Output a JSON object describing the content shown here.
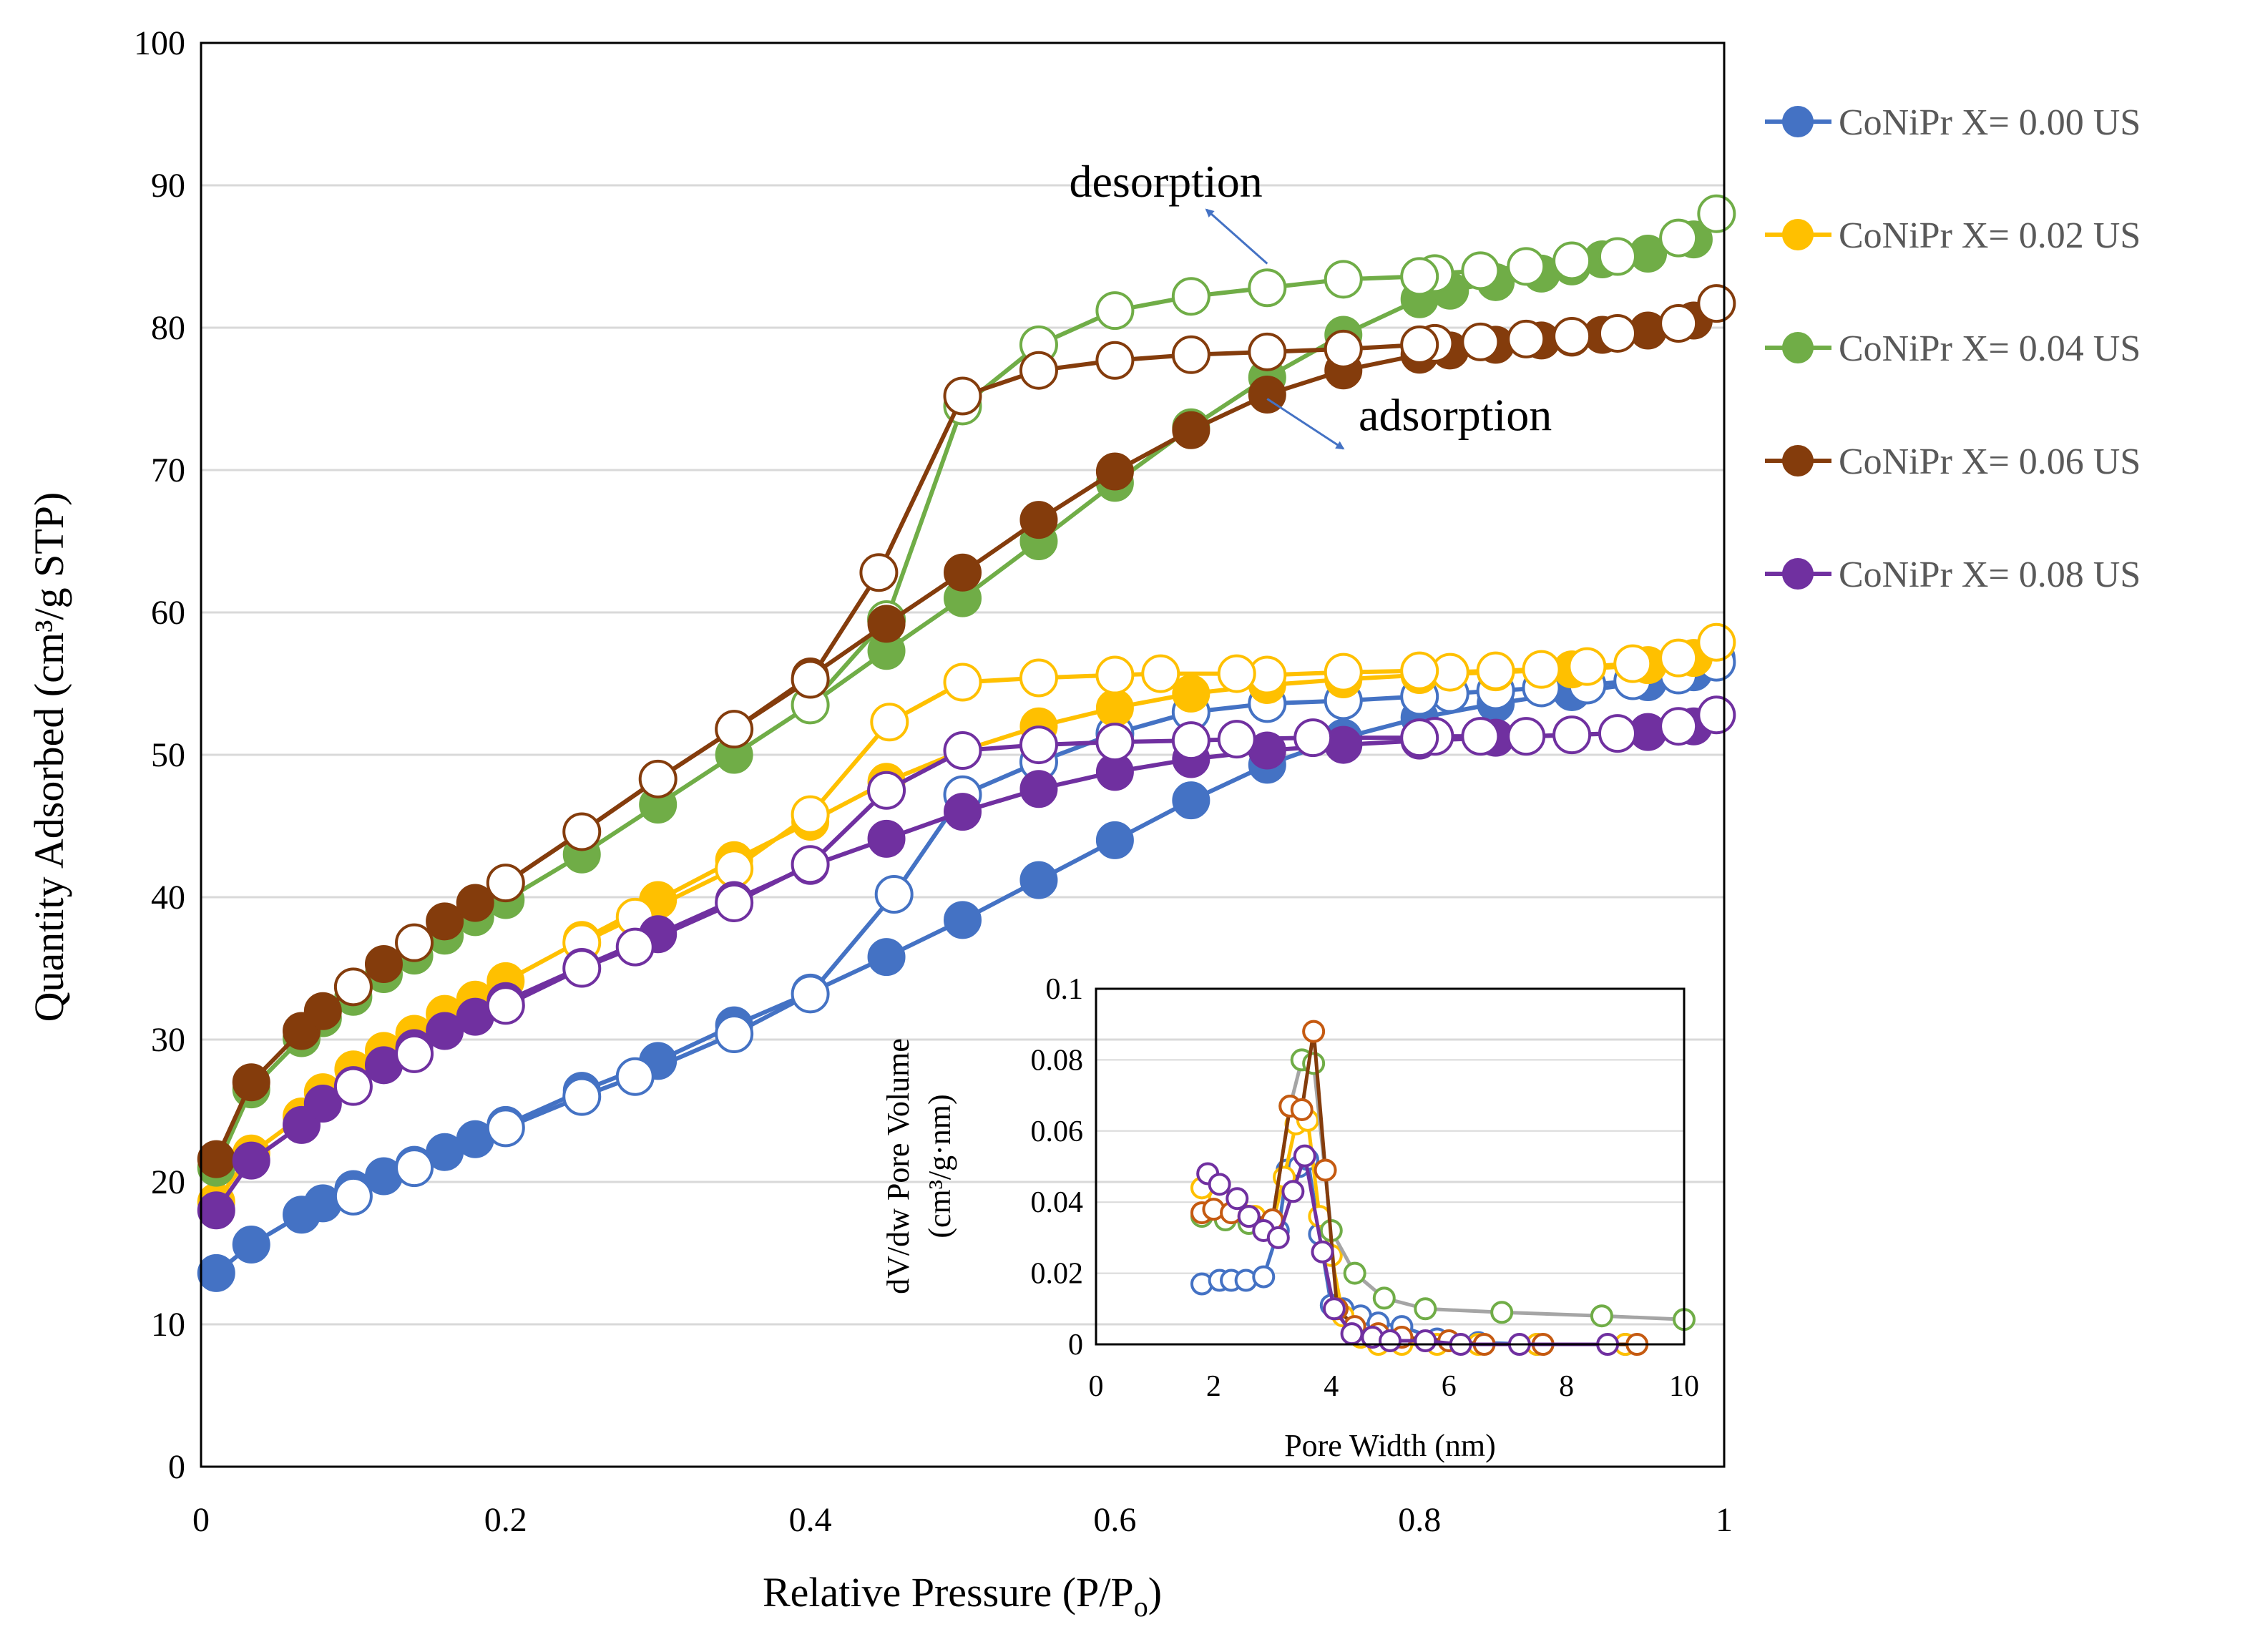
{
  "chart_data": [
    {
      "type": "line",
      "title": "",
      "xlabel": "Relative Pressure (P/P",
      "xlabel_sub": "o",
      "xlabel_end": ")",
      "ylabel": "Quantity Adsorbed (cm³/g STP)",
      "xlim": [
        0,
        1
      ],
      "ylim": [
        0,
        100
      ],
      "xticks": [
        0,
        0.2,
        0.4,
        0.6,
        0.8,
        1
      ],
      "xtick_labels": [
        "0",
        "0.2",
        "0.4",
        "0.6",
        "0.8",
        "1"
      ],
      "yticks": [
        0,
        10,
        20,
        30,
        40,
        50,
        60,
        70,
        80,
        90,
        100
      ],
      "ytick_labels": [
        "0",
        "10",
        "20",
        "30",
        "40",
        "50",
        "60",
        "70",
        "80",
        "90",
        "100"
      ],
      "grid": "horizontal",
      "legend_position": "right",
      "annotations": [
        {
          "text": "desorption",
          "x": 0.57,
          "y": 89.2,
          "arrow_from": [
            0.7,
            84.5
          ],
          "arrow_to": [
            0.66,
            88.3
          ]
        },
        {
          "text": "adsorption",
          "x": 0.76,
          "y": 72.8,
          "arrow_from": [
            0.7,
            75.0
          ],
          "arrow_to": [
            0.75,
            71.5
          ]
        }
      ],
      "series": [
        {
          "name": "CoNiPr X= 0.00 US",
          "color": "#4472C4",
          "adsorption": {
            "x": [
              0.01,
              0.033,
              0.066,
              0.08,
              0.1,
              0.12,
              0.14,
              0.16,
              0.18,
              0.2,
              0.25,
              0.3,
              0.35,
              0.4,
              0.45,
              0.5,
              0.55,
              0.6,
              0.65,
              0.7,
              0.75,
              0.8,
              0.85,
              0.9,
              0.95,
              0.98,
              0.995
            ],
            "y": [
              13.6,
              15.6,
              17.7,
              18.5,
              19.5,
              20.4,
              21.2,
              22.1,
              23.0,
              24.0,
              26.4,
              28.5,
              31.0,
              33.3,
              35.8,
              38.4,
              41.2,
              44.0,
              46.8,
              49.3,
              51.2,
              52.6,
              53.6,
              54.4,
              55.1,
              55.8,
              56.8
            ]
          },
          "desorption": {
            "x": [
              0.995,
              0.97,
              0.94,
              0.91,
              0.88,
              0.85,
              0.82,
              0.8,
              0.75,
              0.7,
              0.65,
              0.6,
              0.55,
              0.5,
              0.455,
              0.4,
              0.35,
              0.285,
              0.25,
              0.2,
              0.14,
              0.1
            ],
            "y": [
              56.5,
              55.6,
              55.2,
              54.9,
              54.7,
              54.5,
              54.3,
              54.1,
              53.8,
              53.6,
              53.0,
              51.5,
              49.5,
              47.2,
              40.2,
              33.2,
              30.4,
              27.4,
              26.0,
              23.8,
              21.0,
              19.0
            ]
          }
        },
        {
          "name": "CoNiPr X= 0.02 US",
          "color": "#FFC000",
          "adsorption": {
            "x": [
              0.01,
              0.033,
              0.066,
              0.08,
              0.1,
              0.12,
              0.14,
              0.16,
              0.18,
              0.2,
              0.25,
              0.3,
              0.35,
              0.4,
              0.45,
              0.5,
              0.55,
              0.6,
              0.65,
              0.7,
              0.75,
              0.8,
              0.85,
              0.9,
              0.95,
              0.98,
              0.995
            ],
            "y": [
              18.6,
              22.0,
              24.6,
              26.3,
              27.9,
              29.2,
              30.4,
              31.8,
              32.8,
              34.1,
              37.0,
              39.8,
              42.6,
              45.3,
              48.1,
              50.3,
              52.0,
              53.3,
              54.3,
              54.9,
              55.3,
              55.6,
              55.8,
              56.0,
              56.3,
              56.8,
              57.9
            ]
          },
          "desorption": {
            "x": [
              0.995,
              0.97,
              0.94,
              0.91,
              0.88,
              0.85,
              0.82,
              0.8,
              0.75,
              0.7,
              0.68,
              0.63,
              0.6,
              0.55,
              0.5,
              0.452,
              0.4,
              0.35,
              0.285,
              0.25
            ],
            "y": [
              57.9,
              56.8,
              56.4,
              56.2,
              56.0,
              55.9,
              55.8,
              55.9,
              55.8,
              55.6,
              55.7,
              55.7,
              55.6,
              55.4,
              55.1,
              52.3,
              45.8,
              42.0,
              38.6,
              36.8
            ]
          }
        },
        {
          "name": "CoNiPr X= 0.04 US",
          "color": "#70AD47",
          "adsorption": {
            "x": [
              0.01,
              0.033,
              0.066,
              0.08,
              0.1,
              0.12,
              0.14,
              0.16,
              0.18,
              0.2,
              0.25,
              0.3,
              0.35,
              0.4,
              0.45,
              0.5,
              0.55,
              0.6,
              0.65,
              0.7,
              0.75,
              0.8,
              0.82,
              0.85,
              0.88,
              0.9,
              0.92,
              0.95,
              0.98,
              0.995
            ],
            "y": [
              21.0,
              26.5,
              30.1,
              31.5,
              33.0,
              34.6,
              35.9,
              37.3,
              38.6,
              39.8,
              43.0,
              46.5,
              50.0,
              53.5,
              57.3,
              61.0,
              65.0,
              69.1,
              73.0,
              76.5,
              79.5,
              82.0,
              82.6,
              83.2,
              83.8,
              84.3,
              84.8,
              85.2,
              86.2,
              88.0
            ]
          },
          "desorption": {
            "x": [
              0.995,
              0.97,
              0.93,
              0.9,
              0.87,
              0.84,
              0.81,
              0.8,
              0.75,
              0.7,
              0.65,
              0.6,
              0.55,
              0.5,
              0.45,
              0.4
            ],
            "y": [
              88.0,
              86.3,
              85.0,
              84.7,
              84.3,
              84.0,
              83.8,
              83.6,
              83.4,
              82.8,
              82.2,
              81.2,
              78.8,
              74.5,
              59.5,
              53.5
            ]
          }
        },
        {
          "name": "CoNiPr X= 0.06 US",
          "color": "#843C0C",
          "adsorption": {
            "x": [
              0.01,
              0.033,
              0.066,
              0.08,
              0.1,
              0.12,
              0.14,
              0.16,
              0.18,
              0.2,
              0.25,
              0.3,
              0.35,
              0.4,
              0.45,
              0.5,
              0.55,
              0.6,
              0.65,
              0.7,
              0.75,
              0.8,
              0.82,
              0.85,
              0.88,
              0.9,
              0.92,
              0.95,
              0.98,
              0.995
            ],
            "y": [
              21.6,
              27.0,
              30.6,
              32.0,
              33.7,
              35.3,
              36.8,
              38.3,
              39.6,
              41.0,
              44.6,
              48.3,
              51.8,
              55.5,
              59.2,
              62.8,
              66.5,
              69.9,
              72.8,
              75.3,
              77.0,
              78.1,
              78.4,
              78.8,
              79.1,
              79.3,
              79.5,
              79.8,
              80.5,
              81.7
            ]
          },
          "desorption": {
            "x": [
              0.995,
              0.97,
              0.93,
              0.9,
              0.87,
              0.84,
              0.81,
              0.8,
              0.75,
              0.7,
              0.65,
              0.6,
              0.55,
              0.5,
              0.445,
              0.4,
              0.35,
              0.3,
              0.25,
              0.2,
              0.14,
              0.1
            ],
            "y": [
              81.7,
              80.3,
              79.6,
              79.4,
              79.2,
              79.0,
              78.9,
              78.8,
              78.5,
              78.3,
              78.1,
              77.7,
              77.0,
              75.2,
              62.8,
              55.3,
              51.8,
              48.3,
              44.6,
              41.0,
              36.8,
              33.7
            ]
          }
        },
        {
          "name": "CoNiPr X= 0.08 US",
          "color": "#7030A0",
          "adsorption": {
            "x": [
              0.01,
              0.033,
              0.066,
              0.08,
              0.1,
              0.12,
              0.14,
              0.16,
              0.18,
              0.2,
              0.25,
              0.3,
              0.35,
              0.4,
              0.45,
              0.5,
              0.55,
              0.6,
              0.65,
              0.7,
              0.75,
              0.8,
              0.85,
              0.9,
              0.95,
              0.98,
              0.995
            ],
            "y": [
              18.0,
              21.5,
              24.0,
              25.5,
              26.8,
              28.2,
              29.4,
              30.6,
              31.6,
              32.7,
              35.1,
              37.4,
              39.8,
              42.2,
              44.1,
              46.0,
              47.6,
              48.8,
              49.7,
              50.3,
              50.7,
              51.0,
              51.2,
              51.4,
              51.6,
              52.0,
              52.8
            ]
          },
          "desorption": {
            "x": [
              0.995,
              0.97,
              0.93,
              0.9,
              0.87,
              0.84,
              0.81,
              0.8,
              0.73,
              0.68,
              0.65,
              0.6,
              0.55,
              0.5,
              0.45,
              0.4,
              0.35,
              0.285,
              0.25,
              0.2,
              0.14,
              0.1
            ],
            "y": [
              52.8,
              52.0,
              51.5,
              51.4,
              51.3,
              51.3,
              51.3,
              51.2,
              51.2,
              51.1,
              51.0,
              50.9,
              50.7,
              50.3,
              47.5,
              42.3,
              39.6,
              36.5,
              35.0,
              32.4,
              29.0,
              26.7
            ]
          }
        }
      ]
    },
    {
      "type": "line",
      "title": "",
      "xlabel": "Pore Width (nm)",
      "ylabel_line1": "dV/dw Pore Volume",
      "ylabel_line2": "(cm³/g·nm)",
      "xlim": [
        0,
        10
      ],
      "ylim": [
        0,
        0.1
      ],
      "xticks": [
        0,
        2,
        4,
        6,
        8,
        10
      ],
      "xtick_labels": [
        "0",
        "2",
        "4",
        "6",
        "8",
        "10"
      ],
      "yticks": [
        0,
        0.02,
        0.04,
        0.06,
        0.08,
        0.1
      ],
      "ytick_labels": [
        "0",
        "0.02",
        "0.04",
        "0.06",
        "0.08",
        "0.1"
      ],
      "grid": "horizontal",
      "series": [
        {
          "name": "CoNiPr X= 0.00 US",
          "color": "#4472C4",
          "line_color": "#4472C4",
          "x": [
            1.8,
            2.1,
            2.3,
            2.55,
            2.85,
            3.1,
            3.25,
            3.45,
            3.6,
            3.8,
            4.0,
            4.2,
            4.5,
            4.8,
            5.2,
            5.8,
            6.5,
            7.5,
            9.0
          ],
          "y": [
            0.017,
            0.018,
            0.018,
            0.018,
            0.019,
            0.032,
            0.049,
            0.05,
            0.052,
            0.031,
            0.011,
            0.01,
            0.008,
            0.006,
            0.005,
            0.0015,
            0.0005,
            0.0,
            0.0
          ]
        },
        {
          "name": "CoNiPr X= 0.02 US",
          "color": "#FFC000",
          "line_color": "#FFC000",
          "x": [
            1.8,
            2.1,
            2.4,
            2.7,
            3.0,
            3.2,
            3.4,
            3.6,
            3.8,
            4.0,
            4.2,
            4.5,
            4.8,
            5.2,
            5.8,
            6.5,
            7.5,
            9.0
          ],
          "y": [
            0.044,
            0.041,
            0.038,
            0.036,
            0.034,
            0.047,
            0.062,
            0.063,
            0.036,
            0.025,
            0.008,
            0.002,
            0.0,
            0.0,
            0.0,
            0.0,
            0.0,
            0.0
          ]
        },
        {
          "name": "CoNiPr X= 0.04 US",
          "color": "#70AD47",
          "line_color": "#A5A5A5",
          "x": [
            1.8,
            2.2,
            2.6,
            3.0,
            3.3,
            3.5,
            3.7,
            4.0,
            4.4,
            4.9,
            5.6,
            6.9,
            8.6,
            10.0
          ],
          "y": [
            0.036,
            0.035,
            0.034,
            0.035,
            0.067,
            0.08,
            0.079,
            0.032,
            0.02,
            0.013,
            0.01,
            0.009,
            0.008,
            0.007
          ]
        },
        {
          "name": "CoNiPr X= 0.06 US",
          "color": "#C55A11",
          "line_color": "#843C0C",
          "x": [
            1.8,
            2.0,
            2.3,
            2.6,
            3.0,
            3.3,
            3.5,
            3.7,
            3.9,
            4.1,
            4.4,
            4.8,
            5.2,
            6.0,
            6.6,
            7.6,
            9.2
          ],
          "y": [
            0.037,
            0.038,
            0.037,
            0.036,
            0.035,
            0.067,
            0.066,
            0.088,
            0.049,
            0.01,
            0.005,
            0.003,
            0.002,
            0.001,
            0.0,
            0.0,
            0.0
          ]
        },
        {
          "name": "CoNiPr X= 0.08 US",
          "color": "#7030A0",
          "line_color": "#7030A0",
          "x": [
            1.9,
            2.1,
            2.4,
            2.6,
            2.85,
            3.1,
            3.35,
            3.55,
            3.85,
            4.05,
            4.35,
            4.7,
            5.0,
            5.6,
            6.2,
            7.2,
            8.7
          ],
          "y": [
            0.048,
            0.045,
            0.041,
            0.036,
            0.032,
            0.03,
            0.043,
            0.053,
            0.026,
            0.01,
            0.003,
            0.002,
            0.001,
            0.001,
            0.0,
            0.0,
            0.0
          ]
        }
      ]
    }
  ]
}
